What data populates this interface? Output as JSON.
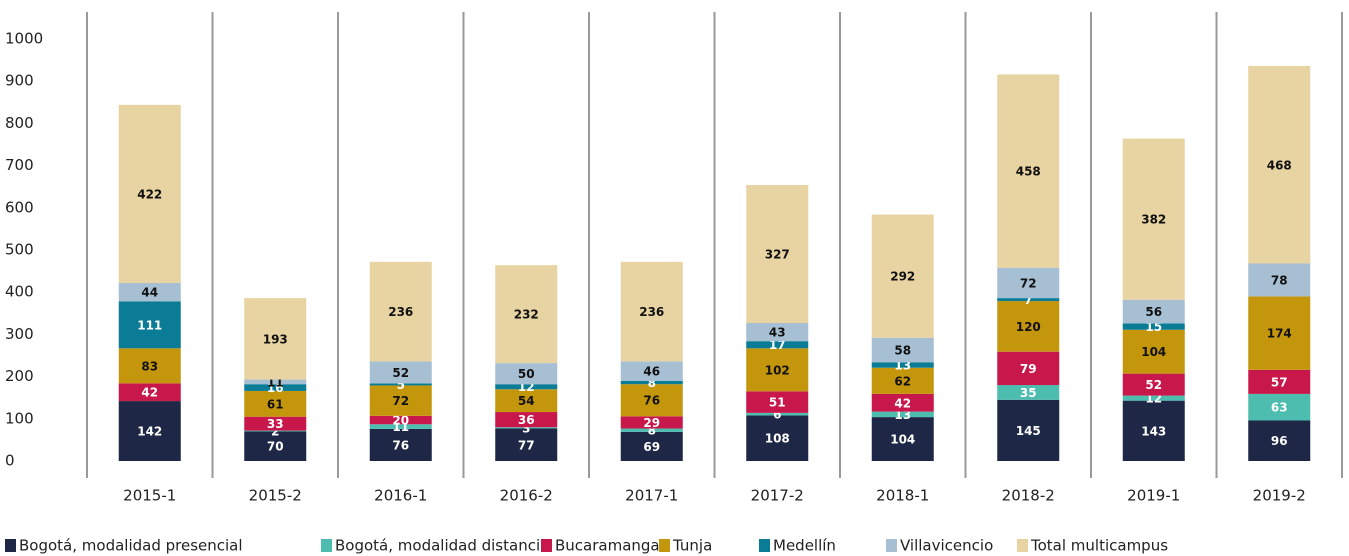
{
  "chart_data": {
    "type": "bar",
    "stacked": true,
    "categories": [
      "2015-1",
      "2015-2",
      "2016-1",
      "2016-2",
      "2017-1",
      "2017-2",
      "2018-1",
      "2018-2",
      "2019-1",
      "2019-2"
    ],
    "series": [
      {
        "name": "Bogotá, modalidad presencial",
        "color": "#1e2745",
        "values": [
          142,
          70,
          76,
          77,
          69,
          108,
          104,
          145,
          143,
          96
        ]
      },
      {
        "name": "Bogotá, modalidad distancia",
        "color": "#4dbdb0",
        "values": [
          null,
          2,
          11,
          3,
          8,
          6,
          13,
          35,
          12,
          63
        ]
      },
      {
        "name": "Bucaramanga",
        "color": "#c8174a",
        "values": [
          42,
          33,
          20,
          36,
          29,
          51,
          42,
          79,
          52,
          57
        ]
      },
      {
        "name": "Tunja",
        "color": "#c4960c",
        "values": [
          83,
          61,
          72,
          54,
          76,
          102,
          62,
          120,
          104,
          174
        ]
      },
      {
        "name": "Medellín",
        "color": "#0b7c95",
        "values": [
          111,
          16,
          5,
          12,
          8,
          17,
          13,
          7,
          15,
          null
        ]
      },
      {
        "name": "Villavicencio",
        "color": "#a6bfd3",
        "values": [
          44,
          11,
          52,
          50,
          46,
          43,
          58,
          72,
          56,
          78
        ]
      },
      {
        "name": "Total multicampus",
        "color": "#e8d3a2",
        "values": [
          422,
          193,
          236,
          232,
          236,
          327,
          292,
          458,
          382,
          468
        ]
      }
    ],
    "ylim": [
      0,
      1000
    ],
    "yticks": [
      0,
      100,
      200,
      300,
      400,
      500,
      600,
      700,
      800,
      900,
      1000
    ],
    "legend": "bottom"
  }
}
